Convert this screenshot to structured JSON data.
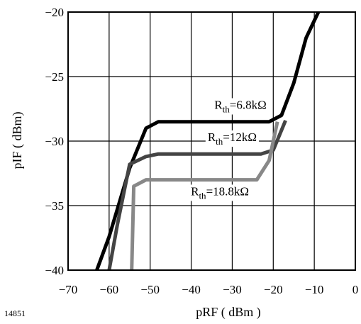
{
  "figure_id": "14851",
  "chart_data": {
    "type": "line",
    "xlabel": "pRF ( dBm )",
    "ylabel": "pIF ( dBm)",
    "xlim": [
      -70,
      0
    ],
    "ylim": [
      -40,
      -20
    ],
    "xticks": [
      -70,
      -60,
      -50,
      -40,
      -30,
      -20,
      -10,
      0
    ],
    "xtick_labels": [
      "−70",
      "−60",
      "−50",
      "−40",
      "−30",
      "−20",
      "−10",
      "0"
    ],
    "yticks": [
      -20,
      -25,
      -30,
      -35,
      -40
    ],
    "ytick_labels": [
      "−20",
      "−25",
      "−30",
      "−35",
      "−40"
    ],
    "grid": true,
    "series": [
      {
        "name": "Rth=6.8kΩ",
        "label_main": "R",
        "label_sub": "th",
        "label_rest": "=6.8kΩ",
        "color": "#000000",
        "x": [
          -63,
          -60,
          -55,
          -51,
          -48,
          -30,
          -21,
          -18,
          -15,
          -12,
          -9
        ],
        "y": [
          -40,
          -37.4,
          -32.1,
          -29,
          -28.5,
          -28.5,
          -28.5,
          -28,
          -25.5,
          -22,
          -20
        ]
      },
      {
        "name": "Rth=12kΩ",
        "label_main": "R",
        "label_sub": "th",
        "label_rest": "=12kΩ",
        "color": "#444444",
        "x": [
          -60,
          -58,
          -55,
          -51,
          -48,
          -30,
          -23,
          -20,
          -17
        ],
        "y": [
          -40,
          -36.5,
          -31.8,
          -31.2,
          -31,
          -31,
          -31,
          -30.7,
          -28.4
        ]
      },
      {
        "name": "Rth=18.8kΩ",
        "label_main": "R",
        "label_sub": "th",
        "label_rest": "=18.8kΩ",
        "color": "#888888",
        "x": [
          -54.5,
          -54,
          -51,
          -40,
          -30,
          -24,
          -21,
          -19
        ],
        "y": [
          -40,
          -33.5,
          -33,
          -33,
          -33,
          -33,
          -31.5,
          -28.5
        ]
      }
    ],
    "label_positions": [
      {
        "x": -28,
        "y": -27.5
      },
      {
        "x": -30,
        "y": -30.0
      },
      {
        "x": -33,
        "y": -34.2
      }
    ]
  }
}
